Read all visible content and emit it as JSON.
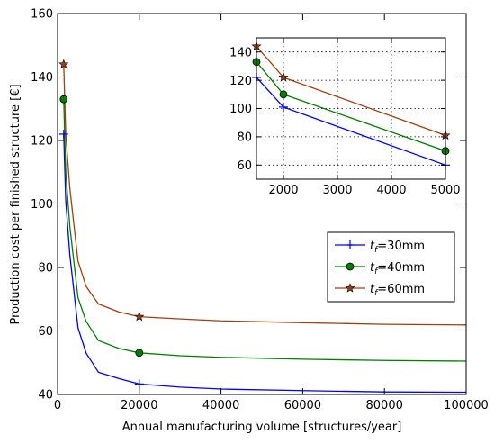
{
  "chart_data": [
    {
      "type": "line",
      "xlabel": "Annual manufacturing volume [structures/year]",
      "ylabel": "Production cost per finished structure [€]",
      "xlim": [
        0,
        100000
      ],
      "ylim": [
        40,
        160
      ],
      "xticks": [
        0,
        20000,
        40000,
        60000,
        80000,
        100000
      ],
      "yticks": [
        40,
        60,
        80,
        100,
        120,
        140,
        160
      ],
      "grid": false,
      "legend_position": "center-right",
      "series": [
        {
          "name": "t_f=30mm",
          "legend_label": {
            "var": "t",
            "sub": "f",
            "rest": "=30mm"
          },
          "color": "#0000ff",
          "marker": "plus",
          "x": [
            1500,
            2000,
            3000,
            5000,
            7000,
            10000,
            15000,
            20000,
            30000,
            40000,
            60000,
            80000,
            100000
          ],
          "y": [
            122,
            101,
            84,
            61,
            53,
            47,
            45,
            43.3,
            42.3,
            41.7,
            41.2,
            40.8,
            40.7
          ],
          "marker_x": [
            1500,
            20000
          ]
        },
        {
          "name": "t_f=40mm",
          "legend_label": {
            "var": "t",
            "sub": "f",
            "rest": "=40mm"
          },
          "color": "#007f00",
          "marker": "circle",
          "x": [
            1500,
            2000,
            3000,
            5000,
            7000,
            10000,
            15000,
            20000,
            30000,
            40000,
            60000,
            80000,
            100000
          ],
          "y": [
            133,
            110,
            93,
            70.5,
            63,
            57,
            54.5,
            53.1,
            52.2,
            51.7,
            51.1,
            50.7,
            50.5
          ],
          "marker_x": [
            1500,
            20000
          ]
        },
        {
          "name": "t_f=60mm",
          "legend_label": {
            "var": "t",
            "sub": "f",
            "rest": "=60mm"
          },
          "color": "#a0400f",
          "marker": "star",
          "x": [
            1500,
            2000,
            3000,
            5000,
            7000,
            10000,
            15000,
            20000,
            30000,
            40000,
            60000,
            80000,
            100000
          ],
          "y": [
            144,
            122,
            105,
            82,
            74,
            68.5,
            66,
            64.5,
            63.8,
            63.2,
            62.6,
            62.1,
            61.9
          ],
          "marker_x": [
            1500,
            20000
          ]
        }
      ]
    },
    {
      "type": "line",
      "role": "inset",
      "xlim": [
        1500,
        5000
      ],
      "ylim": [
        50,
        150
      ],
      "xticks": [
        2000,
        3000,
        4000,
        5000
      ],
      "yticks": [
        60,
        80,
        100,
        120,
        140
      ],
      "grid": true,
      "series": [
        {
          "name": "t_f=30mm",
          "color": "#0000ff",
          "marker": "plus",
          "x": [
            1500,
            2000,
            5000
          ],
          "y": [
            122,
            101,
            60
          ],
          "marker_x": [
            1500,
            2000,
            5000
          ]
        },
        {
          "name": "t_f=40mm",
          "color": "#007f00",
          "marker": "circle",
          "x": [
            1500,
            2000,
            5000
          ],
          "y": [
            133,
            110,
            70
          ],
          "marker_x": [
            1500,
            2000,
            5000
          ]
        },
        {
          "name": "t_f=60mm",
          "color": "#a0400f",
          "marker": "star",
          "x": [
            1500,
            2000,
            5000
          ],
          "y": [
            144,
            122,
            81
          ],
          "marker_x": [
            1500,
            2000,
            5000
          ]
        }
      ]
    }
  ]
}
